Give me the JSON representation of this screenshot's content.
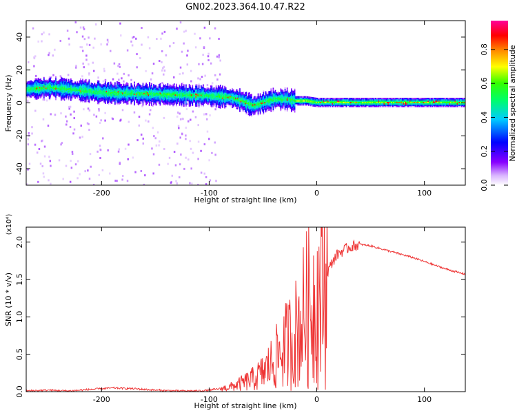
{
  "title": "GN02.2023.364.10.47.R22",
  "colors": {
    "snr_line": "#ee3333",
    "colormap": [
      "#ffffff",
      "#e6ccff",
      "#8800ff",
      "#0000ff",
      "#00ffff",
      "#00ff00",
      "#ffff00",
      "#ff6600",
      "#ff0000",
      "#ff0099"
    ]
  },
  "chart_data": [
    {
      "type": "heatmap",
      "xlabel": "Height of straight line (km)",
      "ylabel": "Frequency (Hz)",
      "xlim": [
        -270,
        138
      ],
      "ylim": [
        -50,
        50
      ],
      "xticks": [
        -200,
        -100,
        0,
        100
      ],
      "xtick_labels": [
        "-200",
        "-100",
        "0",
        "100"
      ],
      "yticks": [
        -40,
        -20,
        0,
        20,
        40
      ],
      "ytick_labels": [
        "-40",
        "-20",
        "0",
        "20",
        "40"
      ],
      "colorbar": {
        "label": "Normalized spectral amplitude",
        "range": [
          0,
          0.97
        ],
        "ticks": [
          0.0,
          0.2,
          0.4,
          0.6,
          0.8
        ],
        "tick_labels": [
          "0.0",
          "0.2",
          "0.4",
          "0.6",
          "0.8"
        ]
      },
      "ridge": {
        "x": [
          -270,
          -250,
          -230,
          -200,
          -150,
          -100,
          -80,
          -70,
          -60,
          -50,
          -40,
          -30,
          -20,
          -10,
          0,
          50,
          100,
          138
        ],
        "frequency": [
          8,
          9,
          8,
          6,
          5,
          4,
          3,
          1,
          -2,
          0,
          2,
          2,
          1,
          1,
          0,
          0,
          0,
          0
        ]
      }
    },
    {
      "type": "line",
      "xlabel": "Height of straight line (km)",
      "ylabel": "SNR (10 * v/v)",
      "y_multiplier": "(x10⁴)",
      "xlim": [
        -270,
        138
      ],
      "ylim": [
        0,
        2.2
      ],
      "xticks": [
        -200,
        -100,
        0,
        100
      ],
      "xtick_labels": [
        "-200",
        "-100",
        "0",
        "100"
      ],
      "yticks": [
        0.0,
        0.5,
        1.0,
        1.5,
        2.0
      ],
      "ytick_labels": [
        "0.0",
        "0.5",
        "1.0",
        "1.5",
        "2.0"
      ],
      "series": [
        {
          "x": [
            -270,
            -250,
            -230,
            -210,
            -190,
            -170,
            -150,
            -130,
            -110,
            -100,
            -90,
            -80,
            -70,
            -60,
            -50,
            -40,
            -30,
            -20,
            -15,
            -10,
            -5,
            0,
            5,
            10,
            15,
            20,
            30,
            40,
            50,
            60,
            70,
            80,
            90,
            100,
            110,
            120,
            130,
            138
          ],
          "values": [
            0.01,
            0.02,
            0.01,
            0.03,
            0.05,
            0.04,
            0.02,
            0.01,
            0.01,
            0.02,
            0.04,
            0.07,
            0.12,
            0.18,
            0.28,
            0.45,
            0.65,
            0.85,
            1.0,
            1.2,
            1.3,
            1.35,
            1.5,
            1.6,
            1.75,
            1.85,
            1.93,
            1.97,
            1.95,
            1.91,
            1.87,
            1.83,
            1.79,
            1.74,
            1.69,
            1.64,
            1.6,
            1.57
          ]
        }
      ]
    }
  ]
}
